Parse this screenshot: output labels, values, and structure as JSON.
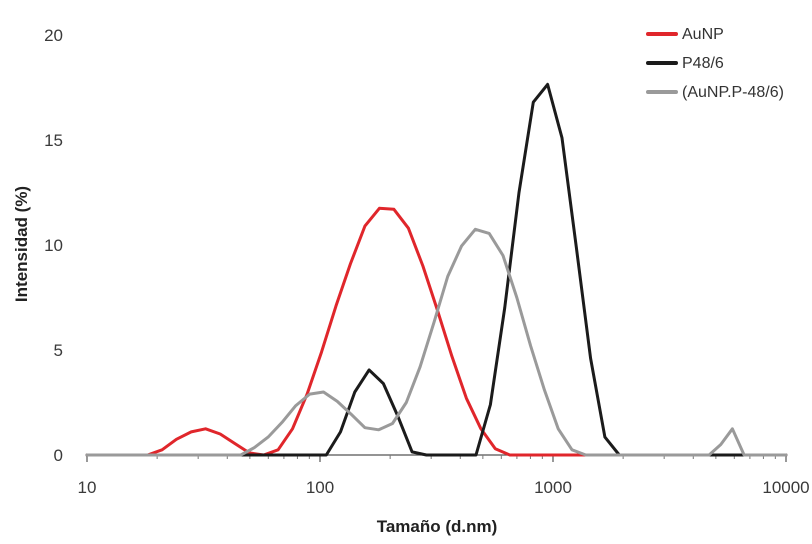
{
  "chart_data": {
    "type": "line",
    "xlabel": "Tamaño (d.nm)",
    "ylabel": "Intensidad (%)",
    "xscale": "log",
    "xlim": [
      10,
      10000
    ],
    "ylim": [
      0,
      20
    ],
    "x_ticks": [
      10,
      100,
      1000,
      10000
    ],
    "x_tick_labels": [
      "10",
      "100",
      "1000",
      "10000"
    ],
    "y_ticks": [
      0,
      5,
      10,
      15,
      20
    ],
    "y_tick_labels": [
      "0",
      "5",
      "10",
      "15",
      "20"
    ],
    "grid": false,
    "legend_position": "top-right",
    "series": [
      {
        "name": "AuNP",
        "color": "#e0262b",
        "points": [
          [
            10,
            0
          ],
          [
            18.2,
            0
          ],
          [
            21.0,
            0.25
          ],
          [
            24.2,
            0.75
          ],
          [
            28.0,
            1.1
          ],
          [
            32.3,
            1.25
          ],
          [
            37.3,
            1.0
          ],
          [
            43.0,
            0.55
          ],
          [
            49.7,
            0.1
          ],
          [
            57.3,
            0
          ],
          [
            66.1,
            0.25
          ],
          [
            76.2,
            1.25
          ],
          [
            88.0,
            2.9
          ],
          [
            101.5,
            4.9
          ],
          [
            117.1,
            7.1
          ],
          [
            135.1,
            9.1
          ],
          [
            155.9,
            10.9
          ],
          [
            179.9,
            11.75
          ],
          [
            207.6,
            11.7
          ],
          [
            239.6,
            10.8
          ],
          [
            276.4,
            9.0
          ],
          [
            319.0,
            6.9
          ],
          [
            368.1,
            4.7
          ],
          [
            424.8,
            2.7
          ],
          [
            490.2,
            1.25
          ],
          [
            565.6,
            0.3
          ],
          [
            652.7,
            0
          ],
          [
            1000,
            0
          ],
          [
            10000,
            0
          ]
        ]
      },
      {
        "name": "P48/6",
        "color": "#1b1b1b",
        "points": [
          [
            10,
            0
          ],
          [
            106.4,
            0
          ],
          [
            122.4,
            1.1
          ],
          [
            141.1,
            3.0
          ],
          [
            162.5,
            4.05
          ],
          [
            187.2,
            3.4
          ],
          [
            215.7,
            1.85
          ],
          [
            248.5,
            0.15
          ],
          [
            286.2,
            0
          ],
          [
            467.4,
            0
          ],
          [
            538.5,
            2.4
          ],
          [
            620.4,
            7.0
          ],
          [
            714.8,
            12.5
          ],
          [
            823.3,
            16.8
          ],
          [
            948.5,
            17.65
          ],
          [
            1092.7,
            15.1
          ],
          [
            1258.8,
            9.9
          ],
          [
            1450.1,
            4.6
          ],
          [
            1670.6,
            0.85
          ],
          [
            1924.6,
            0
          ],
          [
            10000,
            0
          ]
        ]
      },
      {
        "name": "(AuNP.P-48/6)",
        "color": "#9a9a9a",
        "points": [
          [
            10,
            0
          ],
          [
            45.7,
            0
          ],
          [
            52.3,
            0.35
          ],
          [
            59.9,
            0.85
          ],
          [
            68.7,
            1.55
          ],
          [
            78.7,
            2.35
          ],
          [
            90.3,
            2.9
          ],
          [
            103.5,
            3.0
          ],
          [
            118.6,
            2.55
          ],
          [
            135.9,
            1.95
          ],
          [
            155.8,
            1.3
          ],
          [
            178.6,
            1.2
          ],
          [
            204.7,
            1.5
          ],
          [
            234.7,
            2.5
          ],
          [
            268.9,
            4.2
          ],
          [
            308.3,
            6.3
          ],
          [
            353.3,
            8.5
          ],
          [
            405.0,
            9.95
          ],
          [
            464.2,
            10.75
          ],
          [
            532.1,
            10.55
          ],
          [
            609.9,
            9.5
          ],
          [
            699.0,
            7.5
          ],
          [
            801.2,
            5.2
          ],
          [
            918.4,
            3.1
          ],
          [
            1052.6,
            1.25
          ],
          [
            1206.5,
            0.25
          ],
          [
            1383.0,
            0
          ],
          [
            4677,
            0
          ],
          [
            5248,
            0.5
          ],
          [
            5888,
            1.25
          ],
          [
            6607,
            0
          ],
          [
            10000,
            0
          ]
        ]
      }
    ]
  }
}
